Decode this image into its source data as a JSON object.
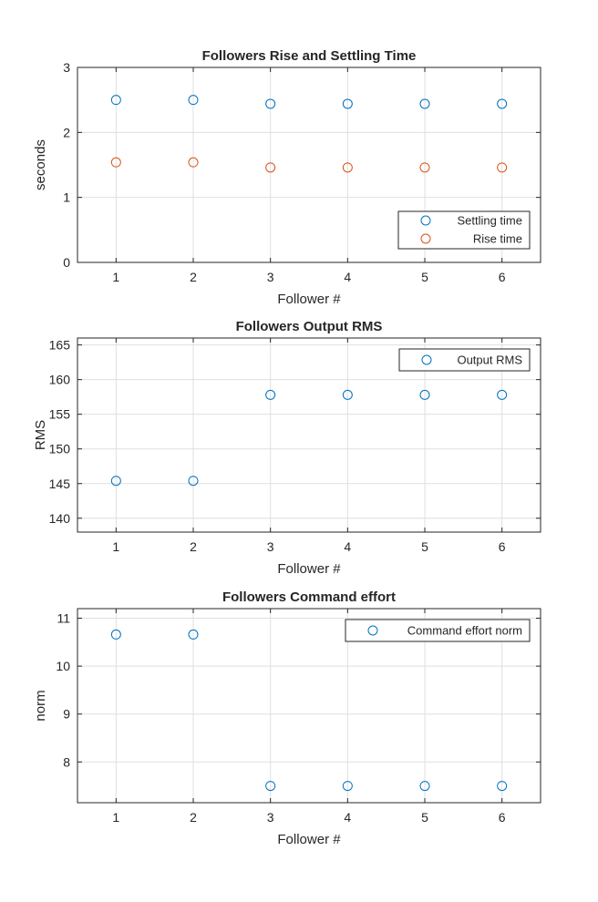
{
  "chart_data": [
    {
      "type": "scatter",
      "title": "Followers Rise and Settling Time",
      "xlabel": "Follower #",
      "ylabel": "seconds",
      "xlim": [
        0.5,
        6.5
      ],
      "ylim": [
        0,
        3
      ],
      "xticks": [
        1,
        2,
        3,
        4,
        5,
        6
      ],
      "yticks": [
        0,
        1,
        2,
        3
      ],
      "grid": true,
      "legend_position": "bottom-right",
      "series": [
        {
          "name": "Settling time",
          "color": "#0072BD",
          "x": [
            1,
            2,
            3,
            4,
            5,
            6
          ],
          "y": [
            2.5,
            2.5,
            2.44,
            2.44,
            2.44,
            2.44
          ]
        },
        {
          "name": "Rise time",
          "color": "#D95319",
          "x": [
            1,
            2,
            3,
            4,
            5,
            6
          ],
          "y": [
            1.54,
            1.54,
            1.46,
            1.46,
            1.46,
            1.46
          ]
        }
      ]
    },
    {
      "type": "scatter",
      "title": "Followers Output RMS",
      "xlabel": "Follower #",
      "ylabel": "RMS",
      "xlim": [
        0.5,
        6.5
      ],
      "ylim": [
        138,
        166
      ],
      "xticks": [
        1,
        2,
        3,
        4,
        5,
        6
      ],
      "yticks": [
        140,
        145,
        150,
        155,
        160,
        165
      ],
      "grid": true,
      "legend_position": "top-right",
      "series": [
        {
          "name": "Output RMS",
          "color": "#0072BD",
          "x": [
            1,
            2,
            3,
            4,
            5,
            6
          ],
          "y": [
            145.4,
            145.4,
            157.8,
            157.8,
            157.8,
            157.8
          ]
        }
      ]
    },
    {
      "type": "scatter",
      "title": "Followers Command effort",
      "xlabel": "Follower #",
      "ylabel": "norm",
      "xlim": [
        0.5,
        6.5
      ],
      "ylim": [
        7.15,
        11.2
      ],
      "xticks": [
        1,
        2,
        3,
        4,
        5,
        6
      ],
      "yticks": [
        8,
        9,
        10,
        11
      ],
      "grid": true,
      "legend_position": "top-right",
      "series": [
        {
          "name": "Command effort norm",
          "color": "#0072BD",
          "x": [
            1,
            2,
            3,
            4,
            5,
            6
          ],
          "y": [
            10.66,
            10.66,
            7.5,
            7.5,
            7.5,
            7.5
          ]
        }
      ]
    }
  ]
}
